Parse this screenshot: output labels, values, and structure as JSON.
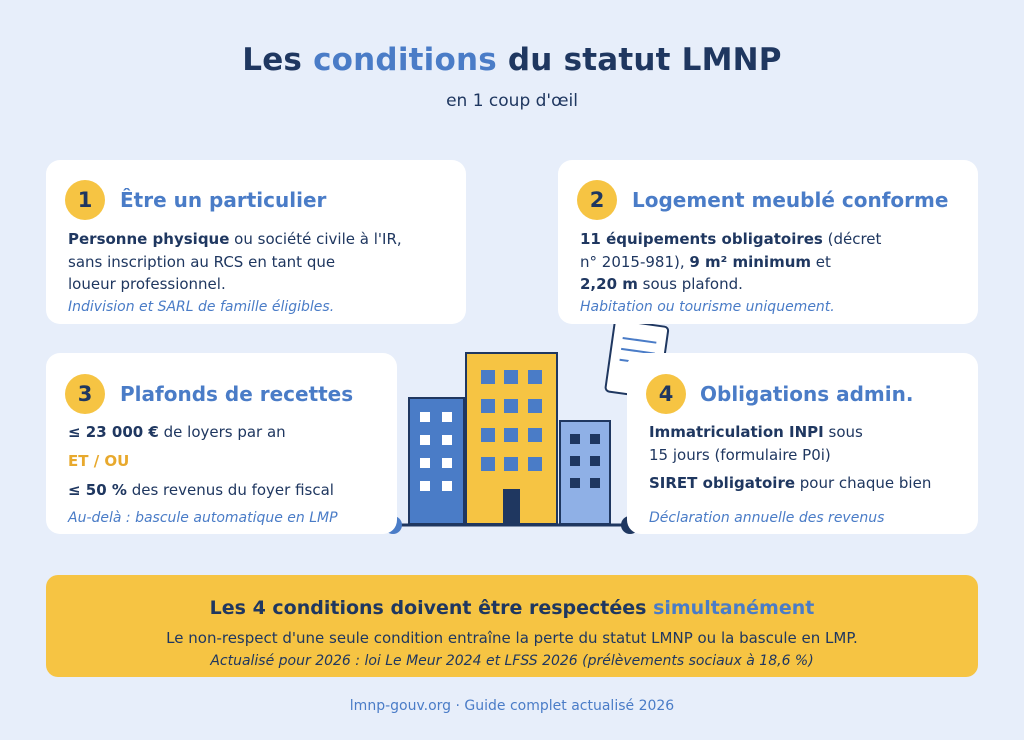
{
  "header": {
    "title_part1": "Les",
    "title_accent": "conditions",
    "title_part2": "du statut LMNP",
    "subtitle": "en 1 coup d'œil"
  },
  "cards": {
    "c1": {
      "number": "1",
      "title": "Être un particulier",
      "l1_bold": "Personne physique",
      "l1_rest": " ou société civile à l'IR,",
      "l2": "sans inscription au RCS en tant que",
      "l3": "loueur professionnel.",
      "note": "Indivision et SARL de famille éligibles."
    },
    "c2": {
      "number": "2",
      "title": "Logement meublé conforme",
      "l1_bold": "11 équipements obligatoires",
      "l1_rest": " (décret",
      "l2_a": "n° 2015-981), ",
      "l2_bold": "9 m² minimum",
      "l2_b": " et",
      "l3_bold": "2,20 m",
      "l3_rest": " sous plafond.",
      "note": "Habitation ou tourisme uniquement."
    },
    "c3": {
      "number": "3",
      "title": "Plafonds de recettes",
      "l1_bold": "≤ 23 000 €",
      "l1_rest": " de loyers par an",
      "et_ou": "ET / OU",
      "l2_bold": "≤ 50 %",
      "l2_rest": " des revenus du foyer fiscal",
      "note": "Au-delà : bascule automatique en LMP"
    },
    "c4": {
      "number": "4",
      "title": "Obligations admin.",
      "l1_bold": "Immatriculation INPI",
      "l1_rest": " sous",
      "l2": "15 jours (formulaire P0i)",
      "l3_bold": "SIRET obligatoire",
      "l3_rest": " pour chaque bien",
      "note": "Déclaration annuelle des revenus"
    }
  },
  "banner": {
    "title_main": "Les 4 conditions doivent être respectées ",
    "title_accent": "simultanément",
    "text": "Le non-respect d'une seule condition entraîne la perte du statut LMNP ou la bascule en LMP.",
    "note": "Actualisé pour 2026 : loi Le Meur 2024 et LFSS 2026 (prélèvements sociaux à 18,6 %)"
  },
  "footer": {
    "text": "lmnp-gouv.org · Guide complet actualisé 2026"
  },
  "icons": {
    "buildings": "buildings-illustration",
    "document": "document-icon"
  },
  "colors": {
    "background": "#e7eefa",
    "navy": "#1f3760",
    "accent_blue": "#4a7cc7",
    "yellow": "#f6c443",
    "orange": "#e8a92d",
    "light_blue": "#8fb0e6"
  }
}
